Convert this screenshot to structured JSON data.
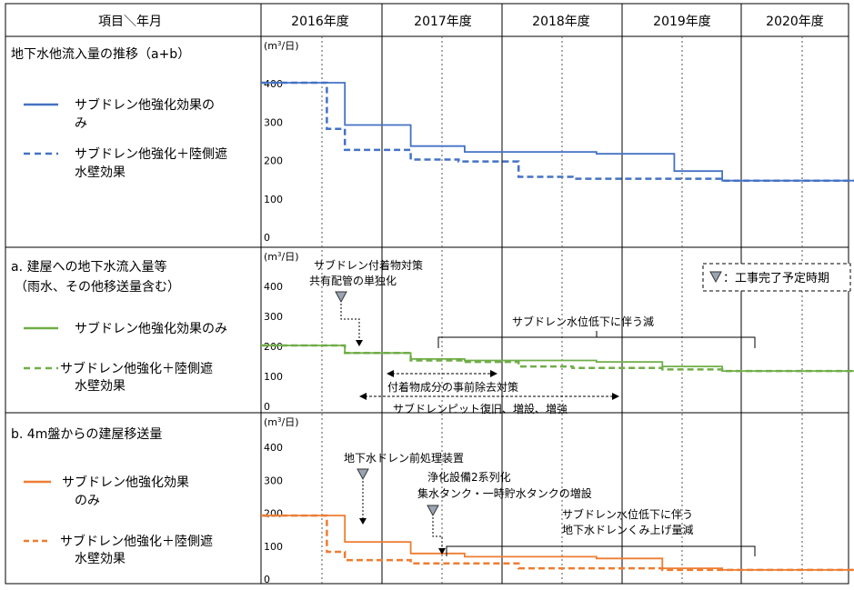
{
  "header": {
    "corner_label": "項目＼年月",
    "years": [
      "2016年度",
      "2017年度",
      "2018年度",
      "2019年度",
      "2020年度"
    ]
  },
  "panels": [
    {
      "id": "total",
      "title_lines": [
        "地下水他流入量の推移（a+b）"
      ],
      "unit": "(m3/日)",
      "legend": [
        {
          "style": "solid",
          "lines": [
            "サブドレン他強化効果の",
            "み"
          ]
        },
        {
          "style": "dashed",
          "lines": [
            "サブドレン他強化＋陸側遮",
            "水壁効果"
          ]
        }
      ]
    },
    {
      "id": "a",
      "title_lines": [
        "a. 建屋への地下水流入量等",
        "（雨水、その他移送量含む）"
      ],
      "unit": "(m3/日)",
      "legend": [
        {
          "style": "solid",
          "lines": [
            "サブドレン他強化効果のみ"
          ]
        },
        {
          "style": "dashed",
          "lines": [
            "サブドレン他強化＋陸側遮",
            "水壁効果"
          ]
        }
      ]
    },
    {
      "id": "b",
      "title_lines": [
        "b. 4m盤からの建屋移送量"
      ],
      "unit": "(m3/日)",
      "legend": [
        {
          "style": "solid",
          "lines": [
            "サブドレン他強化効果",
            "のみ"
          ]
        },
        {
          "style": "dashed",
          "lines": [
            "サブドレン他強化＋陸側遮",
            "水壁効果"
          ]
        }
      ]
    }
  ],
  "annotations": {
    "legend_box": "：工事完了予定時期",
    "a_marker_text": [
      "サブドレン付着物対策",
      "共有配管の単独化"
    ],
    "a_bracket_text": "サブドレン水位低下に伴う減",
    "a_arrow1_text": "付着物成分の事前除去対策",
    "a_arrow2_text": "サブドレンピット復旧、増設、増強",
    "b_marker1_text": "地下水ドレン前処理装置",
    "b_marker2_text": [
      "浄化設備2系列化",
      "集水タンク・一時貯水タンクの増設"
    ],
    "b_bracket_text": [
      "サブドレン水位低下に伴う",
      "地下水ドレンくみ上げ量減"
    ]
  },
  "colors": {
    "total": "#4472C4",
    "a": "#70AD47",
    "b": "#ED7D31",
    "grid": "#000000"
  },
  "chart_data": [
    {
      "type": "line",
      "title": "地下水他流入量の推移（a+b）",
      "xlabel": "",
      "ylabel": "(m3/日)",
      "ylim": [
        0,
        400
      ],
      "yticks": [
        "0",
        "100",
        "200",
        "300",
        "400"
      ],
      "x_axis": [
        "2016年度",
        "2017年度",
        "2018年度",
        "2019年度",
        "2020年度"
      ],
      "xlim_fiscal_years": [
        2015.9,
        2020.85
      ],
      "series": [
        {
          "name": "サブドレン他強化効果のみ",
          "style": "solid",
          "steps": [
            [
              2015.9,
              400
            ],
            [
              2016.6,
              290
            ],
            [
              2017.15,
              235
            ],
            [
              2017.6,
              220
            ],
            [
              2018.7,
              215
            ],
            [
              2019.35,
              170
            ],
            [
              2019.75,
              145
            ],
            [
              2020.85,
              145
            ]
          ]
        },
        {
          "name": "サブドレン他強化＋陸側遮水壁効果",
          "style": "dashed",
          "steps": [
            [
              2015.9,
              400
            ],
            [
              2016.45,
              280
            ],
            [
              2016.6,
              225
            ],
            [
              2017.15,
              200
            ],
            [
              2017.55,
              195
            ],
            [
              2018.05,
              155
            ],
            [
              2018.5,
              150
            ],
            [
              2019.75,
              145
            ],
            [
              2020.85,
              145
            ]
          ]
        }
      ]
    },
    {
      "type": "line",
      "title": "a. 建屋への地下水流入量等（雨水、その他移送量含む）",
      "xlabel": "",
      "ylabel": "(m3/日)",
      "ylim": [
        0,
        400
      ],
      "yticks": [
        "0",
        "100",
        "200",
        "300",
        "400"
      ],
      "x_axis": [
        "2016年度",
        "2017年度",
        "2018年度",
        "2019年度",
        "2020年度"
      ],
      "xlim_fiscal_years": [
        2015.9,
        2020.85
      ],
      "series": [
        {
          "name": "サブドレン他強化効果のみ",
          "style": "solid",
          "steps": [
            [
              2015.9,
              200
            ],
            [
              2016.6,
              175
            ],
            [
              2017.15,
              155
            ],
            [
              2017.6,
              150
            ],
            [
              2018.7,
              145
            ],
            [
              2019.25,
              130
            ],
            [
              2019.75,
              115
            ],
            [
              2020.85,
              115
            ]
          ]
        },
        {
          "name": "サブドレン他強化＋陸側遮水壁効果",
          "style": "dashed",
          "steps": [
            [
              2015.9,
              200
            ],
            [
              2016.6,
              175
            ],
            [
              2017.15,
              150
            ],
            [
              2017.6,
              145
            ],
            [
              2018.05,
              130
            ],
            [
              2018.5,
              125
            ],
            [
              2019.25,
              120
            ],
            [
              2019.75,
              115
            ],
            [
              2020.85,
              115
            ]
          ]
        }
      ]
    },
    {
      "type": "line",
      "title": "b. 4m盤からの建屋移送量",
      "xlabel": "",
      "ylabel": "(m3/日)",
      "ylim": [
        0,
        400
      ],
      "yticks": [
        "0",
        "100",
        "200",
        "300",
        "400"
      ],
      "x_axis": [
        "2016年度",
        "2017年度",
        "2018年度",
        "2019年度",
        "2020年度"
      ],
      "xlim_fiscal_years": [
        2015.9,
        2020.85
      ],
      "series": [
        {
          "name": "サブドレン他強化効果のみ",
          "style": "solid",
          "steps": [
            [
              2015.9,
              190
            ],
            [
              2016.6,
              110
            ],
            [
              2017.15,
              75
            ],
            [
              2017.6,
              65
            ],
            [
              2018.7,
              60
            ],
            [
              2019.25,
              30
            ],
            [
              2019.75,
              25
            ],
            [
              2020.85,
              25
            ]
          ]
        },
        {
          "name": "サブドレン他強化＋陸側遮水壁効果",
          "style": "dashed",
          "steps": [
            [
              2015.9,
              190
            ],
            [
              2016.45,
              80
            ],
            [
              2016.6,
              55
            ],
            [
              2017.15,
              45
            ],
            [
              2018.05,
              30
            ],
            [
              2019.25,
              25
            ],
            [
              2020.85,
              25
            ]
          ]
        }
      ]
    }
  ]
}
